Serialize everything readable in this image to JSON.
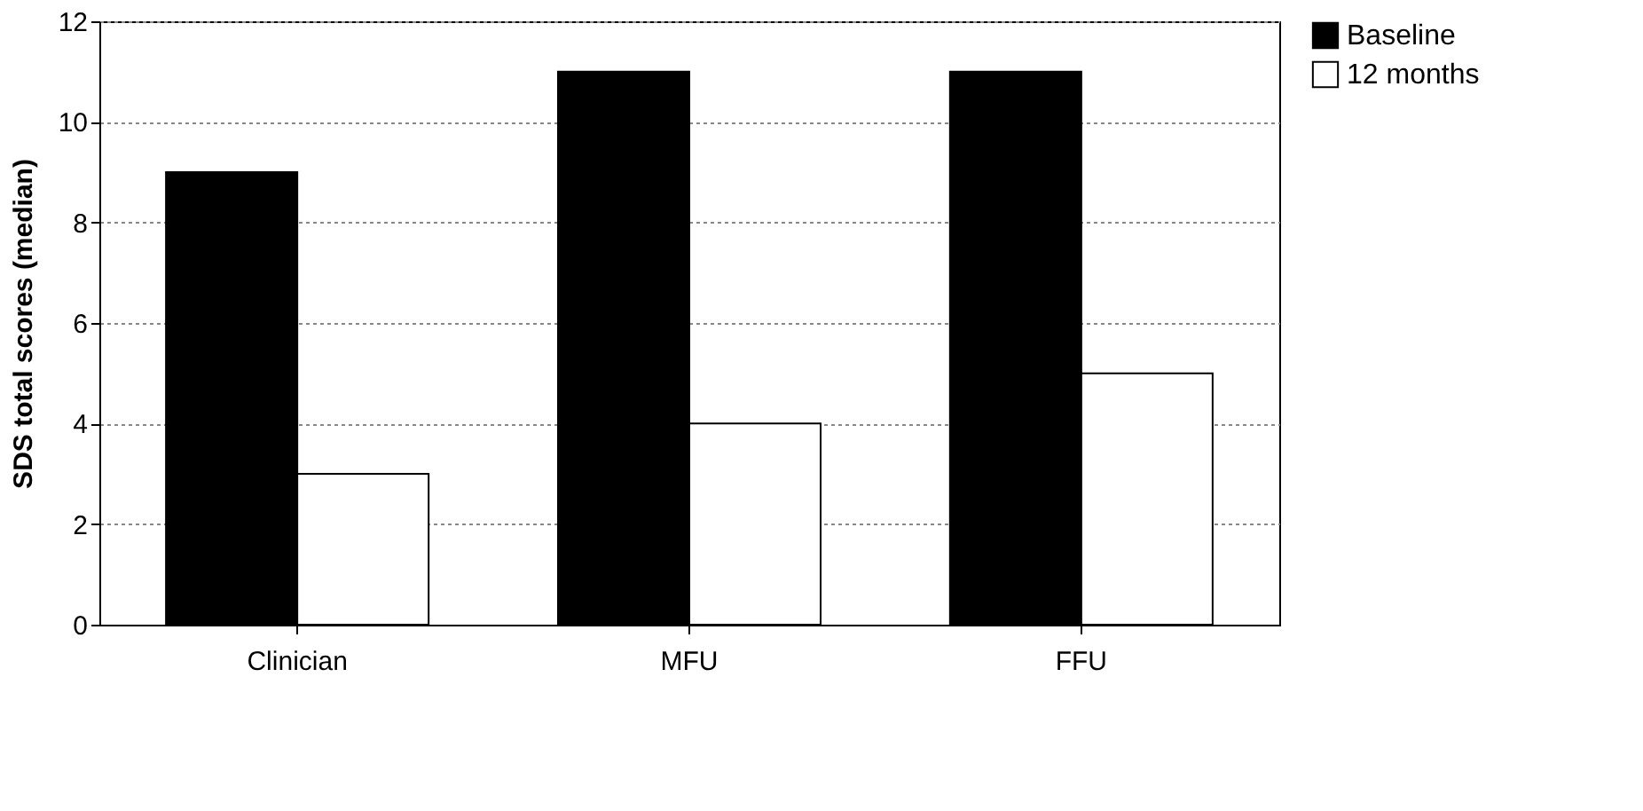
{
  "chart_data": {
    "type": "bar",
    "ylabel": "SDS total scores (median)",
    "categories": [
      "Clinician",
      "MFU",
      "FFU"
    ],
    "series": [
      {
        "name": "Baseline",
        "color": "#000000",
        "values": [
          9,
          11,
          11
        ]
      },
      {
        "name": "12 months",
        "color": "#ffffff",
        "values": [
          3,
          4,
          5
        ]
      }
    ],
    "ylim": [
      0,
      12
    ],
    "yticks": [
      0,
      2,
      4,
      6,
      8,
      10,
      12
    ],
    "grid": "y",
    "legend": "right"
  }
}
